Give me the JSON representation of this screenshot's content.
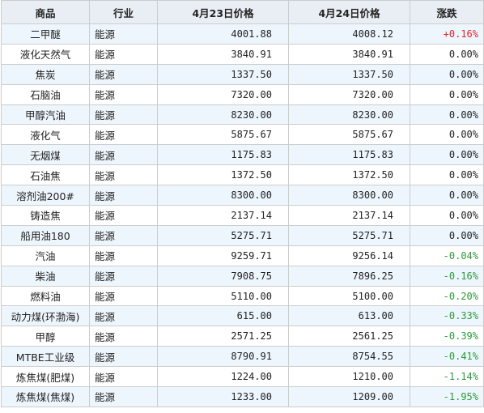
{
  "table": {
    "headers": [
      "商品",
      "行业",
      "4月23日价格",
      "4月24日价格",
      "涨跌"
    ],
    "rows": [
      [
        "二甲醚",
        "能源",
        "4001.88",
        "4008.12",
        "+0.16%"
      ],
      [
        "液化天然气",
        "能源",
        "3840.91",
        "3840.91",
        "0.00%"
      ],
      [
        "焦炭",
        "能源",
        "1337.50",
        "1337.50",
        "0.00%"
      ],
      [
        "石脑油",
        "能源",
        "7320.00",
        "7320.00",
        "0.00%"
      ],
      [
        "甲醇汽油",
        "能源",
        "8230.00",
        "8230.00",
        "0.00%"
      ],
      [
        "液化气",
        "能源",
        "5875.67",
        "5875.67",
        "0.00%"
      ],
      [
        "无烟煤",
        "能源",
        "1175.83",
        "1175.83",
        "0.00%"
      ],
      [
        "石油焦",
        "能源",
        "1372.50",
        "1372.50",
        "0.00%"
      ],
      [
        "溶剂油200#",
        "能源",
        "8300.00",
        "8300.00",
        "0.00%"
      ],
      [
        "铸造焦",
        "能源",
        "2137.14",
        "2137.14",
        "0.00%"
      ],
      [
        "船用油180",
        "能源",
        "5275.71",
        "5275.71",
        "0.00%"
      ],
      [
        "汽油",
        "能源",
        "9259.71",
        "9256.14",
        "-0.04%"
      ],
      [
        "柴油",
        "能源",
        "7908.75",
        "7896.25",
        "-0.16%"
      ],
      [
        "燃料油",
        "能源",
        "5110.00",
        "5100.00",
        "-0.20%"
      ],
      [
        "动力煤(环渤海)",
        "能源",
        "615.00",
        "613.00",
        "-0.33%"
      ],
      [
        "甲醇",
        "能源",
        "2571.25",
        "2561.25",
        "-0.39%"
      ],
      [
        "MTBE工业级",
        "能源",
        "8790.91",
        "8754.55",
        "-0.41%"
      ],
      [
        "炼焦煤(肥煤)",
        "能源",
        "1224.00",
        "1210.00",
        "-1.14%"
      ],
      [
        "炼焦煤(焦煤)",
        "能源",
        "1233.00",
        "1209.00",
        "-1.95%"
      ]
    ]
  },
  "colors": {
    "header_bg": "#e9eef4",
    "row_odd_bg": "#eef6fd",
    "row_even_bg": "#ffffff",
    "border": "#cccccc",
    "up": "#e0242b",
    "down": "#2e9a3a",
    "flat": "#222222"
  }
}
